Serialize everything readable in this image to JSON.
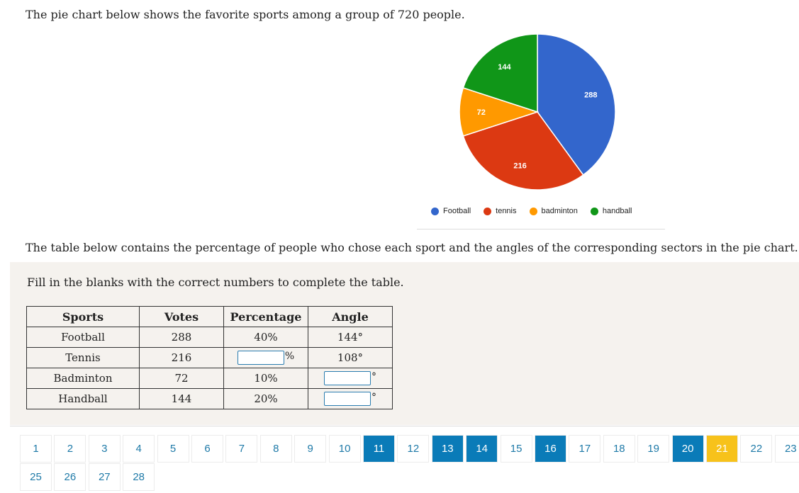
{
  "intro_text": "The pie chart below shows the favorite sports among a group of 720 people.",
  "chart_data": {
    "type": "pie",
    "categories": [
      "Football",
      "tennis",
      "badminton",
      "handball"
    ],
    "values": [
      288,
      216,
      72,
      144
    ],
    "colors": [
      "#3366cc",
      "#dc3912",
      "#ff9900",
      "#109618"
    ],
    "legend_position": "bottom"
  },
  "table_intro": "The table below contains the percentage of people who chose each sport and the angles of the corresponding sectors in the pie chart.",
  "instruction": "Fill in the blanks with the correct numbers to complete the table.",
  "table": {
    "headers": [
      "Sports",
      "Votes",
      "Percentage",
      "Angle"
    ],
    "rows": [
      {
        "sport": "Football",
        "votes": "288",
        "percentage": "40%",
        "angle": "144°"
      },
      {
        "sport": "Tennis",
        "votes": "216",
        "percentage_suffix": "%",
        "angle": "108°"
      },
      {
        "sport": "Badminton",
        "votes": "72",
        "percentage": "10%",
        "angle_suffix": "°"
      },
      {
        "sport": "Handball",
        "votes": "144",
        "percentage": "20%",
        "angle_suffix": "°"
      }
    ]
  },
  "pagination": {
    "row1": [
      "1",
      "2",
      "3",
      "4",
      "5",
      "6",
      "7",
      "8",
      "9",
      "10",
      "11",
      "12",
      "13",
      "14",
      "15",
      "16",
      "17",
      "18",
      "19",
      "20",
      "21",
      "22",
      "23"
    ],
    "row2": [
      "25",
      "26",
      "27",
      "28"
    ],
    "done": [
      "11",
      "13",
      "14",
      "16",
      "20"
    ],
    "current": "21",
    "colors": {
      "done": "#0a7bb8",
      "current": "#f7c21b"
    }
  }
}
